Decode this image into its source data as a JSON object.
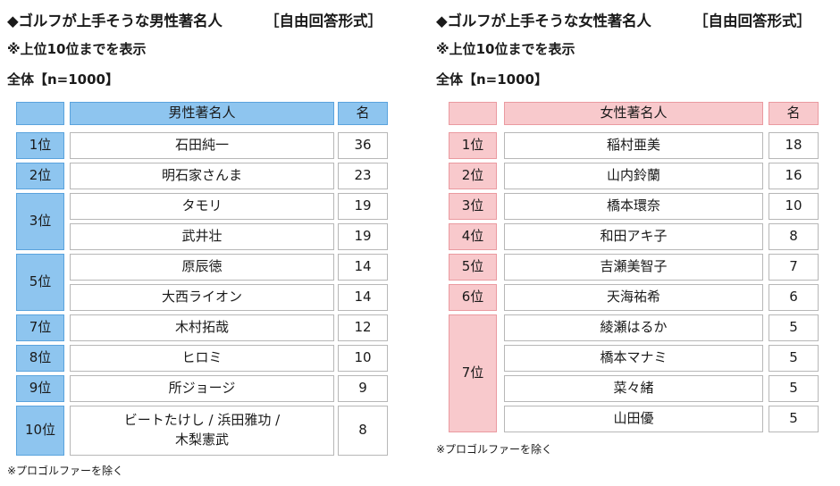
{
  "male": {
    "title": "◆ゴルフが上手そうな男性著名人",
    "tag": "［自由回答形式］",
    "sub1": "※上位10位までを表示",
    "sub2": "全体【n=1000】",
    "header": {
      "name": "男性著名人",
      "count": "名"
    },
    "rows": [
      {
        "rank": "1位",
        "names": [
          "石田純一"
        ],
        "counts": [
          "36"
        ]
      },
      {
        "rank": "2位",
        "names": [
          "明石家さんま"
        ],
        "counts": [
          "23"
        ]
      },
      {
        "rank": "3位",
        "names": [
          "タモリ",
          "武井壮"
        ],
        "counts": [
          "19",
          "19"
        ]
      },
      {
        "rank": "5位",
        "names": [
          "原辰徳",
          "大西ライオン"
        ],
        "counts": [
          "14",
          "14"
        ]
      },
      {
        "rank": "7位",
        "names": [
          "木村拓哉"
        ],
        "counts": [
          "12"
        ]
      },
      {
        "rank": "8位",
        "names": [
          "ヒロミ"
        ],
        "counts": [
          "10"
        ]
      },
      {
        "rank": "9位",
        "names": [
          "所ジョージ"
        ],
        "counts": [
          "9"
        ]
      },
      {
        "rank": "10位",
        "names": [
          "ビートたけし / 浜田雅功 /",
          "木梨憲武"
        ],
        "counts": [
          "8"
        ]
      }
    ],
    "note": "※プロゴルファーを除く"
  },
  "female": {
    "title": "◆ゴルフが上手そうな女性著名人",
    "tag": "［自由回答形式］",
    "sub1": "※上位10位までを表示",
    "sub2": "全体【n=1000】",
    "header": {
      "name": "女性著名人",
      "count": "名"
    },
    "rows": [
      {
        "rank": "1位",
        "names": [
          "稲村亜美"
        ],
        "counts": [
          "18"
        ]
      },
      {
        "rank": "2位",
        "names": [
          "山内鈴蘭"
        ],
        "counts": [
          "16"
        ]
      },
      {
        "rank": "3位",
        "names": [
          "橋本環奈"
        ],
        "counts": [
          "10"
        ]
      },
      {
        "rank": "4位",
        "names": [
          "和田アキ子"
        ],
        "counts": [
          "8"
        ]
      },
      {
        "rank": "5位",
        "names": [
          "吉瀬美智子"
        ],
        "counts": [
          "7"
        ]
      },
      {
        "rank": "6位",
        "names": [
          "天海祐希"
        ],
        "counts": [
          "6"
        ]
      },
      {
        "rank": "7位",
        "names": [
          "綾瀬はるか",
          "橋本マナミ",
          "菜々緒",
          "山田優"
        ],
        "counts": [
          "5",
          "5",
          "5",
          "5"
        ]
      }
    ],
    "note": "※プロゴルファーを除く"
  }
}
